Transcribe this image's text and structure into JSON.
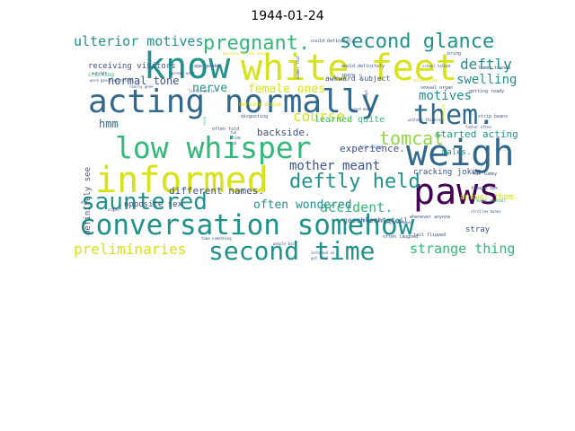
{
  "figure": {
    "title": "1944-01-24"
  },
  "wordcloud": {
    "colors": {
      "purple": "#440154",
      "indigo": "#3b528b",
      "blue": "#31688e",
      "teal": "#21918c",
      "green": "#35b779",
      "lime": "#90d743",
      "yellow": "#d8e219"
    },
    "words": [
      {
        "text": "conversation somehow",
        "color": "#21918c"
      },
      {
        "text": "acting normally",
        "color": "#31688e"
      },
      {
        "text": "white feet",
        "color": "#d8e219"
      },
      {
        "text": "informed",
        "color": "#d8e219"
      },
      {
        "text": "low whisper",
        "color": "#35b779"
      },
      {
        "text": "know",
        "color": "#21918c"
      },
      {
        "text": "weigh",
        "color": "#31688e"
      },
      {
        "text": "paws",
        "color": "#440154"
      },
      {
        "text": "sauntered",
        "color": "#21918c"
      },
      {
        "text": "second time",
        "color": "#21918c"
      },
      {
        "text": "them.",
        "color": "#31688e"
      },
      {
        "text": "deftly held",
        "color": "#21918c"
      },
      {
        "text": "second glance",
        "color": "#21918c"
      },
      {
        "text": "pregnant.",
        "color": "#35b779"
      },
      {
        "text": "tomcat",
        "color": "#90d743"
      },
      {
        "text": "ulterior motives",
        "color": "#21918c"
      },
      {
        "text": "preliminaries",
        "color": "#d8e219"
      },
      {
        "text": "strange thing",
        "color": "#35b779"
      },
      {
        "text": "mother meant",
        "color": "#3b528b"
      },
      {
        "text": "accident.",
        "color": "#35b779"
      },
      {
        "text": "course.",
        "color": "#d8e219"
      },
      {
        "text": "deftly",
        "color": "#21918c"
      },
      {
        "text": "swelling",
        "color": "#21918c"
      },
      {
        "text": "nerve",
        "color": "#21918c"
      },
      {
        "text": "female ones",
        "color": "#d8e219"
      },
      {
        "text": "normal tone",
        "color": "#3b528b"
      },
      {
        "text": "often wondered",
        "color": "#21918c"
      },
      {
        "text": "motives",
        "color": "#21918c"
      },
      {
        "text": "hmm",
        "color": "#31688e"
      },
      {
        "text": "started acting",
        "color": "#21918c"
      },
      {
        "text": "backside.",
        "color": "#3b528b"
      },
      {
        "text": "different names.",
        "color": "#3b528b"
      },
      {
        "text": "experience.",
        "color": "#3b528b"
      },
      {
        "text": "learned quite",
        "color": "#35b779"
      },
      {
        "text": "males.",
        "color": "#21918c"
      },
      {
        "text": "cracking jokes",
        "color": "#3b528b"
      },
      {
        "text": "definitely see",
        "color": "#3b528b"
      },
      {
        "text": "opposite sex",
        "color": "#3b528b"
      },
      {
        "text": "receiving visitors",
        "color": "#3b528b"
      },
      {
        "text": "answer them.",
        "color": "#d8e219"
      },
      {
        "text": "stray",
        "color": "#3b528b"
      },
      {
        "text": "geschlechtsteil",
        "color": "#31688e"
      },
      {
        "text": "cracking",
        "color": "#35b779"
      },
      {
        "text": "awkward subject",
        "color": "#3b528b"
      },
      {
        "text": "selection",
        "color": "#d8e219"
      },
      {
        "text": "could definitely",
        "color": "#3b528b"
      },
      {
        "text": "sexual organ",
        "color": "#3b528b"
      },
      {
        "text": "tummy turned",
        "color": "#3b528b"
      },
      {
        "text": "getting ready",
        "color": "#3b528b"
      },
      {
        "text": "strip beans",
        "color": "#3b528b"
      },
      {
        "text": "fat tummy",
        "color": "#3b528b"
      },
      {
        "text": "female sex",
        "color": "#3b528b"
      },
      {
        "text": "male sexual",
        "color": "#35b779"
      },
      {
        "text": "tail flipped",
        "color": "#3b528b"
      },
      {
        "text": "often laughed",
        "color": "#3b528b"
      },
      {
        "text": "nursing mouse",
        "color": "#d8e219"
      },
      {
        "text": "disgusting",
        "color": "#3b528b"
      },
      {
        "text": "often told",
        "color": "#3b528b"
      },
      {
        "text": "take something",
        "color": "#3b528b"
      },
      {
        "text": "age gender",
        "color": "#3b528b"
      },
      {
        "text": "german word",
        "color": "#3b528b"
      },
      {
        "text": "word geschlechtsteil",
        "color": "#3b528b"
      },
      {
        "text": "really gone",
        "color": "#3b528b"
      },
      {
        "text": "little while",
        "color": "#3b528b"
      },
      {
        "text": "strollen bones",
        "color": "#3b528b"
      },
      {
        "text": "felt called",
        "color": "#3b528b"
      },
      {
        "text": "long warehouse",
        "color": "#3b528b"
      },
      {
        "text": "whenever anyone",
        "color": "#3b528b"
      },
      {
        "text": "geschlechtsteil meant",
        "color": "#d8e219"
      },
      {
        "text": "school talked",
        "color": "#3b528b"
      },
      {
        "text": "would definitely",
        "color": "#3b528b"
      },
      {
        "text": "bring",
        "color": "#3b528b"
      },
      {
        "text": "people",
        "color": "#d8e219"
      },
      {
        "text": "without thinking",
        "color": "#3b528b"
      },
      {
        "text": "father often",
        "color": "#3b528b"
      },
      {
        "text": "word meant",
        "color": "#3b528b"
      },
      {
        "text": "rather fast",
        "color": "#3b528b"
      },
      {
        "text": "outside",
        "color": "#3b528b"
      },
      {
        "text": "informed us",
        "color": "#3b528b"
      },
      {
        "text": "got cold",
        "color": "#3b528b"
      },
      {
        "text": "hot",
        "color": "#3b528b"
      },
      {
        "text": "spare",
        "color": "#3b528b"
      },
      {
        "text": "nice",
        "color": "#35b779"
      },
      {
        "text": "people bare",
        "color": "#3b528b"
      },
      {
        "text": "kept",
        "color": "#3b528b"
      },
      {
        "text": "summer that",
        "color": "#3b528b"
      },
      {
        "text": "dis",
        "color": "#3b528b"
      },
      {
        "text": "organ",
        "color": "#3b528b"
      },
      {
        "text": "fun",
        "color": "#3b528b"
      },
      {
        "text": "pride",
        "color": "#3b528b"
      },
      {
        "text": "tab",
        "color": "#3b528b"
      },
      {
        "text": "sung",
        "color": "#3b528b"
      }
    ]
  }
}
